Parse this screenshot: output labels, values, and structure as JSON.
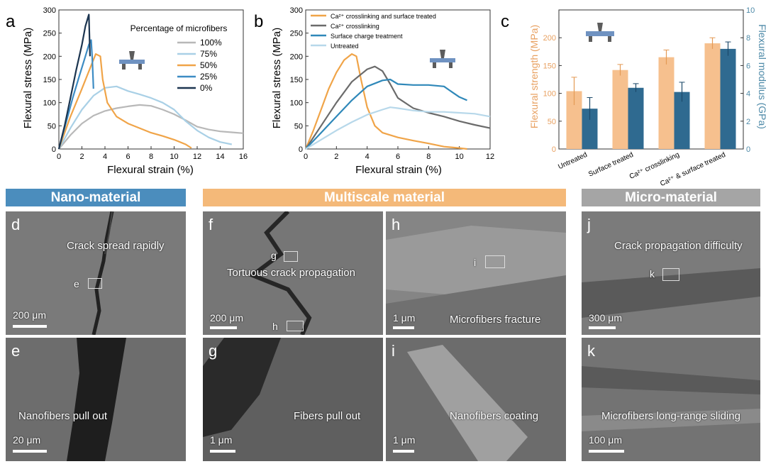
{
  "chart_data": [
    {
      "panel": "a",
      "type": "line",
      "xlabel": "Flexural strain (%)",
      "ylabel": "Flexural stress (MPa)",
      "xlim": [
        0,
        16
      ],
      "ylim": [
        0,
        300
      ],
      "xticks": [
        0,
        2,
        4,
        6,
        8,
        10,
        12,
        14,
        16
      ],
      "yticks": [
        0,
        50,
        100,
        150,
        200,
        250,
        300
      ],
      "legend_title": "Percentage of microfibers",
      "legend_position": "top-right",
      "series": [
        {
          "name": "100%",
          "color": "#b8b8b8",
          "points": [
            [
              0,
              0
            ],
            [
              1,
              30
            ],
            [
              2,
              55
            ],
            [
              3,
              72
            ],
            [
              4,
              82
            ],
            [
              5,
              88
            ],
            [
              6,
              92
            ],
            [
              7,
              95
            ],
            [
              8,
              93
            ],
            [
              9,
              85
            ],
            [
              10,
              75
            ],
            [
              11,
              62
            ],
            [
              12,
              48
            ],
            [
              13,
              42
            ],
            [
              14,
              38
            ],
            [
              15,
              36
            ],
            [
              16,
              34
            ]
          ]
        },
        {
          "name": "75%",
          "color": "#a9d0e6",
          "points": [
            [
              0,
              0
            ],
            [
              1,
              45
            ],
            [
              2,
              85
            ],
            [
              3,
              115
            ],
            [
              4,
              132
            ],
            [
              5,
              135
            ],
            [
              6,
              125
            ],
            [
              7,
              118
            ],
            [
              8,
              110
            ],
            [
              9,
              100
            ],
            [
              10,
              85
            ],
            [
              11,
              60
            ],
            [
              12,
              40
            ],
            [
              13,
              25
            ],
            [
              14,
              15
            ],
            [
              15,
              10
            ]
          ]
        },
        {
          "name": "50%",
          "color": "#f0a448",
          "points": [
            [
              0,
              0
            ],
            [
              1,
              70
            ],
            [
              2,
              130
            ],
            [
              2.8,
              180
            ],
            [
              3.2,
              205
            ],
            [
              3.6,
              200
            ],
            [
              3.8,
              150
            ],
            [
              4.2,
              100
            ],
            [
              5,
              70
            ],
            [
              6,
              55
            ],
            [
              7,
              45
            ],
            [
              8,
              35
            ],
            [
              9,
              28
            ],
            [
              10,
              20
            ],
            [
              11,
              10
            ],
            [
              11.5,
              2
            ]
          ]
        },
        {
          "name": "25%",
          "color": "#3d8cc4",
          "points": [
            [
              0,
              0
            ],
            [
              0.6,
              55
            ],
            [
              1.2,
              110
            ],
            [
              1.8,
              160
            ],
            [
              2.3,
              200
            ],
            [
              2.6,
              225
            ],
            [
              2.8,
              235
            ],
            [
              2.9,
              195
            ],
            [
              3.0,
              130
            ]
          ]
        },
        {
          "name": "0%",
          "color": "#1c3550",
          "points": [
            [
              0,
              0
            ],
            [
              0.5,
              50
            ],
            [
              1,
              110
            ],
            [
              1.5,
              170
            ],
            [
              2,
              225
            ],
            [
              2.3,
              265
            ],
            [
              2.6,
              290
            ],
            [
              2.7,
              200
            ]
          ]
        }
      ]
    },
    {
      "panel": "b",
      "type": "line",
      "xlabel": "Flexural strain (%)",
      "ylabel": "Flexural stress (MPa)",
      "xlim": [
        0,
        12
      ],
      "ylim": [
        0,
        300
      ],
      "xticks": [
        0,
        2,
        4,
        6,
        8,
        10,
        12
      ],
      "yticks": [
        0,
        50,
        100,
        150,
        200,
        250,
        300
      ],
      "legend_position": "top-left",
      "series": [
        {
          "name": "Ca²⁺ crosslinking and surface treated",
          "color": "#f0a448",
          "points": [
            [
              0,
              0
            ],
            [
              0.5,
              40
            ],
            [
              1,
              85
            ],
            [
              1.5,
              130
            ],
            [
              2,
              165
            ],
            [
              2.5,
              192
            ],
            [
              3,
              205
            ],
            [
              3.3,
              200
            ],
            [
              3.6,
              150
            ],
            [
              4,
              90
            ],
            [
              4.5,
              50
            ],
            [
              5,
              35
            ],
            [
              6,
              25
            ],
            [
              7,
              18
            ],
            [
              8,
              12
            ],
            [
              9,
              5
            ],
            [
              10,
              2
            ],
            [
              10.5,
              0
            ]
          ]
        },
        {
          "name": "Ca²⁺ crosslinking",
          "color": "#6b6b6b",
          "points": [
            [
              0,
              0
            ],
            [
              1,
              50
            ],
            [
              2,
              100
            ],
            [
              3,
              145
            ],
            [
              4,
              172
            ],
            [
              4.5,
              178
            ],
            [
              5,
              168
            ],
            [
              5.5,
              140
            ],
            [
              6,
              110
            ],
            [
              7,
              88
            ],
            [
              8,
              78
            ],
            [
              9,
              70
            ],
            [
              10,
              60
            ],
            [
              11,
              52
            ],
            [
              12,
              45
            ]
          ]
        },
        {
          "name": "Surface charge treatment",
          "color": "#2f88b9",
          "points": [
            [
              0,
              0
            ],
            [
              1,
              35
            ],
            [
              2,
              70
            ],
            [
              3,
              105
            ],
            [
              4,
              135
            ],
            [
              5,
              148
            ],
            [
              5.5,
              150
            ],
            [
              6,
              140
            ],
            [
              7,
              138
            ],
            [
              8,
              138
            ],
            [
              9,
              135
            ],
            [
              9.3,
              128
            ],
            [
              10,
              112
            ],
            [
              10.5,
              105
            ]
          ]
        },
        {
          "name": "Untreated",
          "color": "#b7d8ea",
          "points": [
            [
              0,
              0
            ],
            [
              1,
              20
            ],
            [
              2,
              40
            ],
            [
              3,
              58
            ],
            [
              4,
              74
            ],
            [
              5,
              85
            ],
            [
              5.5,
              90
            ],
            [
              6,
              88
            ],
            [
              7,
              83
            ],
            [
              8,
              80
            ],
            [
              9,
              80
            ],
            [
              10,
              78
            ],
            [
              11,
              76
            ],
            [
              12,
              70
            ]
          ]
        }
      ]
    },
    {
      "panel": "c",
      "type": "bar",
      "categories": [
        "Untreated",
        "Surface treated",
        "Ca²⁺ crosslinking",
        "Ca²⁺ & surface treated"
      ],
      "ylabel": "Flexural strength (MPa)",
      "ylabel_right": "Flexural modulus (GPa)",
      "ylim": [
        0,
        250
      ],
      "ylim_right": [
        0,
        10
      ],
      "yticks": [
        0,
        50,
        100,
        150,
        200
      ],
      "yticks_right": [
        0,
        2,
        4,
        6,
        8,
        10
      ],
      "series": [
        {
          "name": "Flexural strength",
          "axis": "left",
          "color": "#f6c08e",
          "values": [
            104,
            142,
            165,
            190
          ],
          "errors": [
            25,
            10,
            13,
            10
          ]
        },
        {
          "name": "Flexural modulus",
          "axis": "right",
          "color": "#2f6a90",
          "values": [
            2.9,
            4.4,
            4.1,
            7.2
          ],
          "errors": [
            0.8,
            0.3,
            0.7,
            0.5
          ]
        }
      ]
    }
  ],
  "panel_letters": {
    "a": "a",
    "b": "b",
    "c": "c"
  },
  "sections": {
    "nano": {
      "label": "Nano-material",
      "color": "#4b8dbd"
    },
    "multi": {
      "label": "Multiscale material",
      "color": "#f4b979"
    },
    "micro": {
      "label": "Micro-material",
      "color": "#a5a5a5"
    }
  },
  "sem_panels": {
    "d": {
      "letter": "d",
      "caption": "Crack spread rapidly",
      "scale": "200 μm",
      "marker": "e"
    },
    "e": {
      "letter": "e",
      "caption": "Nanofibers pull out",
      "scale": "20 μm"
    },
    "f": {
      "letter": "f",
      "caption": "Tortuous crack propagation",
      "scale": "200 μm",
      "marker_g": "g",
      "marker_h": "h"
    },
    "g": {
      "letter": "g",
      "caption": "Fibers pull out",
      "scale": "1 μm"
    },
    "h": {
      "letter": "h",
      "caption": "Microfibers fracture",
      "scale": "1 μm",
      "marker": "i"
    },
    "i": {
      "letter": "i",
      "caption": "Nanofibers coating",
      "scale": "1 μm"
    },
    "j": {
      "letter": "j",
      "caption": "Crack propagation difficulty",
      "scale": "300 μm",
      "marker": "k"
    },
    "k": {
      "letter": "k",
      "caption": "Microfibers long-range sliding",
      "scale": "100 μm"
    }
  }
}
